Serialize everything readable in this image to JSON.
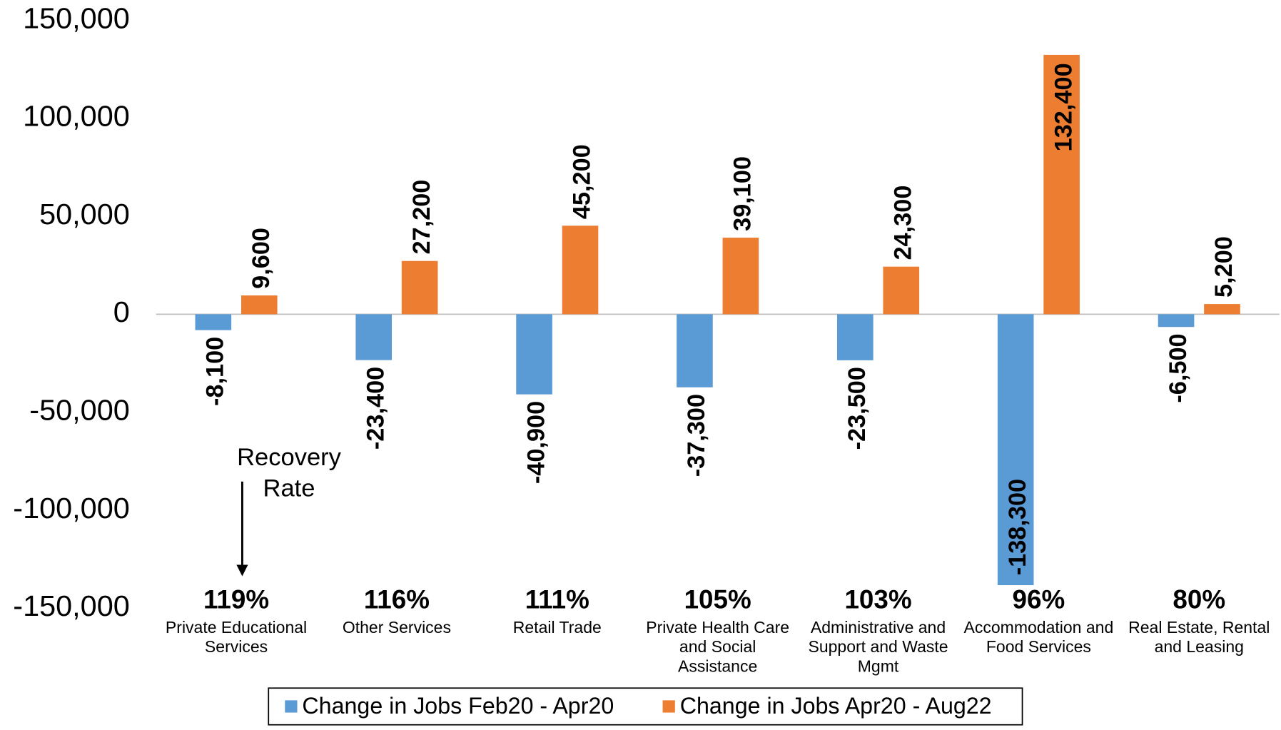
{
  "chart_data": {
    "type": "bar",
    "categories": [
      [
        "Private Educational",
        "Services"
      ],
      [
        "Other Services"
      ],
      [
        "Retail Trade"
      ],
      [
        "Private Health Care",
        "and Social",
        "Assistance"
      ],
      [
        "Administrative and",
        "Support and Waste",
        "Mgmt"
      ],
      [
        "Accommodation and",
        "Food Services"
      ],
      [
        "Real Estate, Rental",
        "and Leasing"
      ]
    ],
    "series": [
      {
        "name": "Change in Jobs Feb20 - Apr20",
        "color": "#5b9bd5",
        "values": [
          -8100,
          -23400,
          -40900,
          -37300,
          -23500,
          -138300,
          -6500
        ],
        "value_labels": [
          "-8,100",
          "-23,400",
          "-40,900",
          "-37,300",
          "-23,500",
          "-138,300",
          "-6,500"
        ]
      },
      {
        "name": "Change in Jobs Apr20 - Aug22",
        "color": "#ed7d31",
        "values": [
          9600,
          27200,
          45200,
          39100,
          24300,
          132400,
          5200
        ],
        "value_labels": [
          "9,600",
          "27,200",
          "45,200",
          "39,100",
          "24,300",
          "132,400",
          "5,200"
        ]
      }
    ],
    "recovery_rate": {
      "title": [
        "Recovery",
        "Rate"
      ],
      "values": [
        119,
        116,
        111,
        105,
        103,
        96,
        80
      ],
      "value_labels": [
        "119%",
        "116%",
        "111%",
        "105%",
        "103%",
        "96%",
        "80%"
      ]
    },
    "ylim": [
      -150000,
      150000
    ],
    "yticks": [
      {
        "value": -150000,
        "label": "-150,000"
      },
      {
        "value": -100000,
        "label": "-100,000"
      },
      {
        "value": -50000,
        "label": "-50,000"
      },
      0,
      {
        "value": 50000,
        "label": "50,000"
      },
      {
        "value": 100000,
        "label": "100,000"
      },
      {
        "value": 150000,
        "label": "150,000"
      }
    ],
    "legend": "bottom",
    "grid": false
  }
}
